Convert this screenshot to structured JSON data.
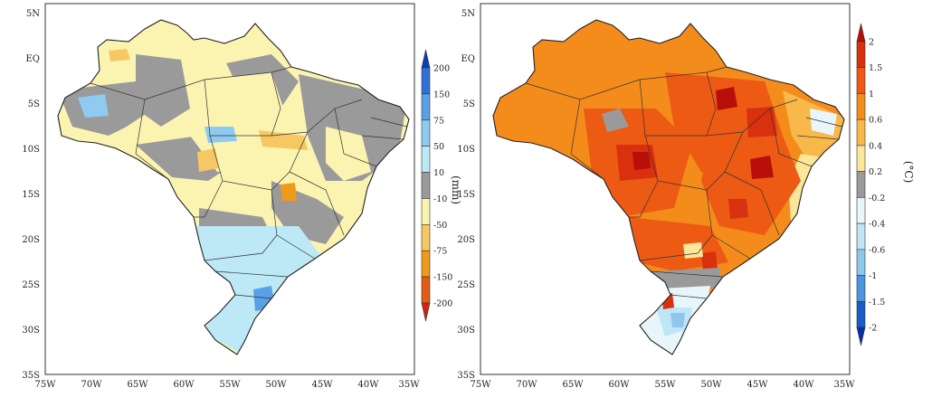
{
  "maps": [
    {
      "id": "precip",
      "title": "",
      "unit_label": "(mm)",
      "lat_ticks": [
        "5N",
        "EQ",
        "5S",
        "10S",
        "15S",
        "20S",
        "25S",
        "30S",
        "35S"
      ],
      "lon_ticks": [
        "75W",
        "70W",
        "65W",
        "60W",
        "55W",
        "50W",
        "45W",
        "40W",
        "35W"
      ],
      "colorbar": {
        "labels": [
          "200",
          "150",
          "75",
          "50",
          "10",
          "-10",
          "-50",
          "-75",
          "-150",
          "-200"
        ],
        "colors": [
          "#0a3fb4",
          "#2f70d8",
          "#5aa0e6",
          "#8fcaf0",
          "#bde8f5",
          "#9a9a9a",
          "#fbf4b0",
          "#f7c763",
          "#f09a1c",
          "#e35b14",
          "#d4230e"
        ]
      }
    },
    {
      "id": "temperature",
      "title": "",
      "unit_label": "(°C)",
      "lat_ticks": [
        "5N",
        "EQ",
        "5S",
        "10S",
        "15S",
        "20S",
        "25S",
        "30S",
        "35S"
      ],
      "lon_ticks": [
        "75W",
        "70W",
        "65W",
        "60W",
        "55W",
        "50W",
        "45W",
        "40W",
        "35W"
      ],
      "colorbar": {
        "labels": [
          "2",
          "1.5",
          "1",
          "0.6",
          "0.4",
          "0.2",
          "-0.2",
          "-0.4",
          "-0.6",
          "-1",
          "-1.5",
          "-2"
        ],
        "colors": [
          "#b80f0a",
          "#d9300f",
          "#ec5a14",
          "#f48c1c",
          "#f9b84a",
          "#fde69a",
          "#9a9a9a",
          "#e8f6fb",
          "#bfe6f6",
          "#8ec6ee",
          "#4d95e0",
          "#1a5bc8",
          "#0a2fa8"
        ]
      }
    }
  ]
}
